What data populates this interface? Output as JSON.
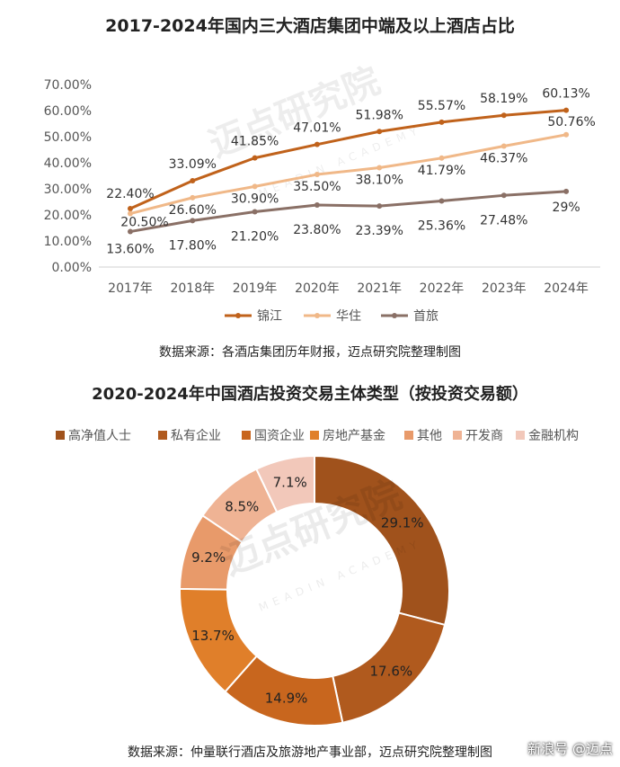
{
  "chart_data": [
    {
      "type": "line",
      "title": "2017-2024年国内三大酒店集团中端及以上酒店占比",
      "categories": [
        "2017年",
        "2018年",
        "2019年",
        "2020年",
        "2021年",
        "2022年",
        "2023年",
        "2024年"
      ],
      "y_ticks": [
        "0.00%",
        "10.00%",
        "20.00%",
        "30.00%",
        "40.00%",
        "50.00%",
        "60.00%",
        "70.00%"
      ],
      "ylim": [
        0,
        70
      ],
      "grid": false,
      "legend_position": "bottom",
      "series": [
        {
          "name": "锦江",
          "color": "#C0621B",
          "values": [
            22.4,
            33.09,
            41.85,
            47.01,
            51.98,
            55.57,
            58.19,
            60.13
          ],
          "labels": [
            "22.40%",
            "33.09%",
            "41.85%",
            "47.01%",
            "51.98%",
            "55.57%",
            "58.19%",
            "60.13%"
          ]
        },
        {
          "name": "华住",
          "color": "#F0B888",
          "values": [
            20.5,
            26.6,
            30.9,
            35.5,
            38.1,
            41.79,
            46.37,
            50.76
          ],
          "labels": [
            "20.50%",
            "26.60%",
            "30.90%",
            "35.50%",
            "38.10%",
            "41.79%",
            "46.37%",
            "50.76%"
          ]
        },
        {
          "name": "首旅",
          "color": "#8A7066",
          "values": [
            13.6,
            17.8,
            21.2,
            23.8,
            23.39,
            25.36,
            27.48,
            29.0
          ],
          "labels": [
            "13.60%",
            "17.80%",
            "21.20%",
            "23.80%",
            "23.39%",
            "25.36%",
            "27.48%",
            "29%"
          ]
        }
      ],
      "source": "数据来源：各酒店集团历年财报，迈点研究院整理制图"
    },
    {
      "type": "pie",
      "variant": "donut",
      "title": "2020-2024年中国酒店投资交易主体类型（按投资交易额）",
      "legend_position": "top",
      "slices": [
        {
          "name": "高净值人士",
          "value": 29.1,
          "label": "29.1%",
          "color": "#A0521C"
        },
        {
          "name": "私有企业",
          "value": 17.6,
          "label": "17.6%",
          "color": "#B05A1E"
        },
        {
          "name": "国资企业",
          "value": 14.9,
          "label": "14.9%",
          "color": "#C8661E"
        },
        {
          "name": "房地产基金",
          "value": 13.7,
          "label": "13.7%",
          "color": "#E07F2A"
        },
        {
          "name": "其他",
          "value": 9.2,
          "label": "9.2%",
          "color": "#E89A6A"
        },
        {
          "name": "开发商",
          "value": 8.5,
          "label": "8.5%",
          "color": "#EFB394"
        },
        {
          "name": "金融机构",
          "value": 7.1,
          "label": "7.1%",
          "color": "#F2C8BA"
        }
      ],
      "source": "数据来源：仲量联行酒店及旅游地产事业部，迈点研究院整理制图"
    }
  ],
  "watermark": {
    "brand": "迈点研究院",
    "brand_en": "MEADIN ACADEMY",
    "corner": "新浪号 @迈点"
  }
}
